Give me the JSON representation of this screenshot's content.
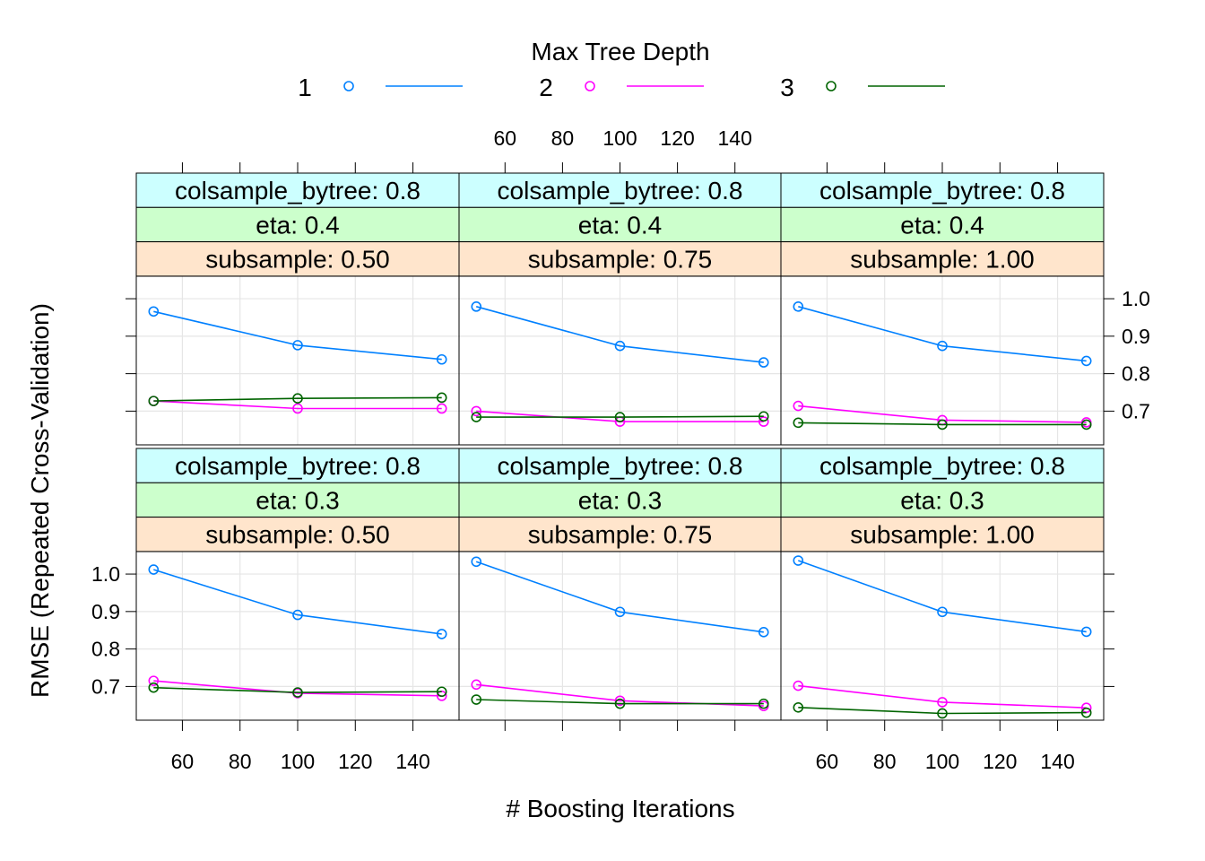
{
  "chart_data": {
    "type": "line",
    "legend": {
      "title": "Max Tree Depth",
      "placement": "top",
      "entries": [
        {
          "label": "1",
          "color": "#0080ff"
        },
        {
          "label": "2",
          "color": "#ff00ff"
        },
        {
          "label": "3",
          "color": "#006400"
        }
      ]
    },
    "xlabel": "# Boosting Iterations",
    "ylabel": "RMSE (Repeated Cross-Validation)",
    "x_ticks": [
      "60",
      "80",
      "100",
      "120",
      "140"
    ],
    "x_tick_values": [
      60,
      80,
      100,
      120,
      140
    ],
    "y_ticks": [
      "0.7",
      "0.8",
      "0.9",
      "1.0"
    ],
    "y_tick_values": [
      0.7,
      0.8,
      0.9,
      1.0
    ],
    "xlim": [
      44,
      156
    ],
    "ylim": [
      0.61,
      1.06
    ],
    "x": [
      50,
      100,
      150
    ],
    "strip_colors": [
      "#ccffff",
      "#ccffcc",
      "#ffe5cc"
    ],
    "panels": [
      {
        "strips": [
          "colsample_bytree: 0.8",
          "eta: 0.4",
          "subsample: 0.50"
        ],
        "series": [
          {
            "name": "1",
            "values": [
              0.966,
              0.876,
              0.838
            ]
          },
          {
            "name": "2",
            "values": [
              0.727,
              0.707,
              0.707
            ]
          },
          {
            "name": "3",
            "values": [
              0.727,
              0.734,
              0.736
            ]
          }
        ]
      },
      {
        "strips": [
          "colsample_bytree: 0.8",
          "eta: 0.4",
          "subsample: 0.75"
        ],
        "series": [
          {
            "name": "1",
            "values": [
              0.979,
              0.874,
              0.83
            ]
          },
          {
            "name": "2",
            "values": [
              0.7,
              0.672,
              0.672
            ]
          },
          {
            "name": "3",
            "values": [
              0.684,
              0.684,
              0.686
            ]
          }
        ]
      },
      {
        "strips": [
          "colsample_bytree: 0.8",
          "eta: 0.4",
          "subsample: 1.00"
        ],
        "series": [
          {
            "name": "1",
            "values": [
              0.979,
              0.874,
              0.834
            ]
          },
          {
            "name": "2",
            "values": [
              0.714,
              0.676,
              0.67
            ]
          },
          {
            "name": "3",
            "values": [
              0.669,
              0.664,
              0.664
            ]
          }
        ]
      },
      {
        "strips": [
          "colsample_bytree: 0.8",
          "eta: 0.3",
          "subsample: 0.50"
        ],
        "series": [
          {
            "name": "1",
            "values": [
              1.012,
              0.891,
              0.84
            ]
          },
          {
            "name": "2",
            "values": [
              0.715,
              0.682,
              0.675
            ]
          },
          {
            "name": "3",
            "values": [
              0.697,
              0.684,
              0.686
            ]
          }
        ]
      },
      {
        "strips": [
          "colsample_bytree: 0.8",
          "eta: 0.3",
          "subsample: 0.75"
        ],
        "series": [
          {
            "name": "1",
            "values": [
              1.033,
              0.899,
              0.845
            ]
          },
          {
            "name": "2",
            "values": [
              0.705,
              0.662,
              0.648
            ]
          },
          {
            "name": "3",
            "values": [
              0.665,
              0.654,
              0.654
            ]
          }
        ]
      },
      {
        "strips": [
          "colsample_bytree: 0.8",
          "eta: 0.3",
          "subsample: 1.00"
        ],
        "series": [
          {
            "name": "1",
            "values": [
              1.036,
              0.899,
              0.846
            ]
          },
          {
            "name": "2",
            "values": [
              0.702,
              0.658,
              0.643
            ]
          },
          {
            "name": "3",
            "values": [
              0.644,
              0.628,
              0.63
            ]
          }
        ]
      }
    ]
  }
}
